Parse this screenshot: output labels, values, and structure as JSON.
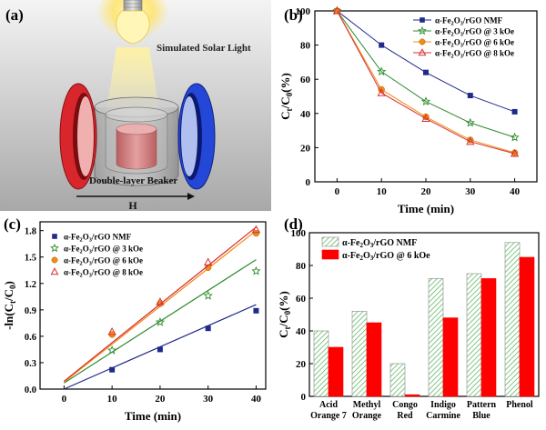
{
  "panel_labels": {
    "a": "(a)",
    "b": "(b)",
    "c": "(c)",
    "d": "(d)"
  },
  "schematic": {
    "light_label": "Simulated Solar Light",
    "beaker_label": "Double-layer Beaker",
    "field_label": "H",
    "colors": {
      "left_coil": "#d8262c",
      "right_coil": "#2547d8",
      "sample": "#d48080"
    },
    "icons": [
      "light-bulb-icon",
      "magnet-coil-icon",
      "beaker-icon"
    ]
  },
  "chart_data": [
    {
      "id": "b",
      "type": "line",
      "ylabel_main": "C",
      "ylabel_sub1": "t",
      "ylabel_mid": "/C",
      "ylabel_sub2": "0",
      "ylabel_tail": "(%)",
      "xlabel": "Time (min)",
      "xlim": [
        -5,
        45
      ],
      "ylim": [
        0,
        100
      ],
      "xticks": [
        0,
        10,
        20,
        30,
        40
      ],
      "yticks": [
        0,
        20,
        40,
        60,
        80,
        100
      ],
      "x": [
        0,
        10,
        20,
        30,
        40
      ],
      "legend_position": "top-right",
      "series": [
        {
          "name": "α-Fe2O3/rGO NMF",
          "values": [
            100,
            80,
            64,
            50.5,
            41
          ],
          "color": "#1f2a8a",
          "marker": "square"
        },
        {
          "name": "α-Fe2O3/rGO @ 3 kOe",
          "values": [
            100,
            64.5,
            47,
            34.5,
            26
          ],
          "color": "#2e8b2e",
          "marker": "star"
        },
        {
          "name": "α-Fe2O3/rGO @ 6 kOe",
          "values": [
            100,
            54,
            38,
            24.5,
            17
          ],
          "color": "#f08c1a",
          "marker": "circle"
        },
        {
          "name": "α-Fe2O3/rGO @ 8 kOe",
          "values": [
            100,
            52,
            37,
            23.5,
            16.5
          ],
          "color": "#d83030",
          "marker": "triangle"
        }
      ]
    },
    {
      "id": "c",
      "type": "scatter",
      "ylabel": "-ln(C",
      "ylabel_sub1": "t",
      "ylabel_mid": "/C",
      "ylabel_sub2": "0",
      "ylabel_tail": ")",
      "xlabel": "Time (min)",
      "xlim": [
        -5,
        42
      ],
      "ylim": [
        0,
        1.9
      ],
      "xticks": [
        0,
        10,
        20,
        30,
        40
      ],
      "yticks": [
        0.0,
        0.3,
        0.6,
        0.9,
        1.2,
        1.5,
        1.8
      ],
      "ytick_labels": [
        "0.0",
        "0.3",
        "0.6",
        "0.9",
        "1.2",
        "1.5",
        "1.8"
      ],
      "x": [
        10,
        20,
        30,
        40
      ],
      "legend_position": "top-left",
      "series": [
        {
          "name": "α-Fe2O3/rGO NMF",
          "values": [
            0.22,
            0.45,
            0.69,
            0.89
          ],
          "fit": [
            [
              0,
              0.0
            ],
            [
              40,
              0.96
            ]
          ],
          "color": "#1f2a8a",
          "marker": "square"
        },
        {
          "name": "α-Fe2O3/rGO @ 3 kOe",
          "values": [
            0.44,
            0.76,
            1.06,
            1.34
          ],
          "fit": [
            [
              0,
              0.07
            ],
            [
              40,
              1.47
            ]
          ],
          "color": "#2e8b2e",
          "marker": "star"
        },
        {
          "name": "α-Fe2O3/rGO @ 6 kOe",
          "values": [
            0.62,
            0.97,
            1.38,
            1.77
          ],
          "fit": [
            [
              0,
              0.08
            ],
            [
              40,
              1.8
            ]
          ],
          "color": "#f08c1a",
          "marker": "circle"
        },
        {
          "name": "α-Fe2O3/rGO @ 8 kOe",
          "values": [
            0.65,
            0.99,
            1.44,
            1.81
          ],
          "fit": [
            [
              0,
              0.09
            ],
            [
              40,
              1.84
            ]
          ],
          "color": "#d83030",
          "marker": "triangle"
        }
      ]
    },
    {
      "id": "d",
      "type": "bar",
      "ylabel_main": "C",
      "ylabel_sub1": "t",
      "ylabel_mid": "/C",
      "ylabel_sub2": "0",
      "ylabel_tail": "(%)",
      "ylim": [
        0,
        100
      ],
      "yticks": [
        0,
        20,
        40,
        60,
        80,
        100
      ],
      "categories": [
        [
          "Acid",
          "Orange 7"
        ],
        [
          "Methyl",
          "Orange"
        ],
        [
          "Congo",
          "Red"
        ],
        [
          "Indigo",
          "Carmine"
        ],
        [
          "Pattern",
          "Blue"
        ],
        [
          "Phenol"
        ]
      ],
      "legend_position": "top-left",
      "series": [
        {
          "name": "α-Fe2O3/rGO NMF",
          "values": [
            40,
            52,
            20,
            72,
            75,
            94
          ],
          "color": "#4caf50",
          "pattern": "hatch"
        },
        {
          "name": "α-Fe2O3/rGO @ 6 kOe",
          "values": [
            30,
            45,
            1,
            48,
            72,
            85
          ],
          "color": "#ff0000",
          "pattern": "solid"
        }
      ]
    }
  ]
}
